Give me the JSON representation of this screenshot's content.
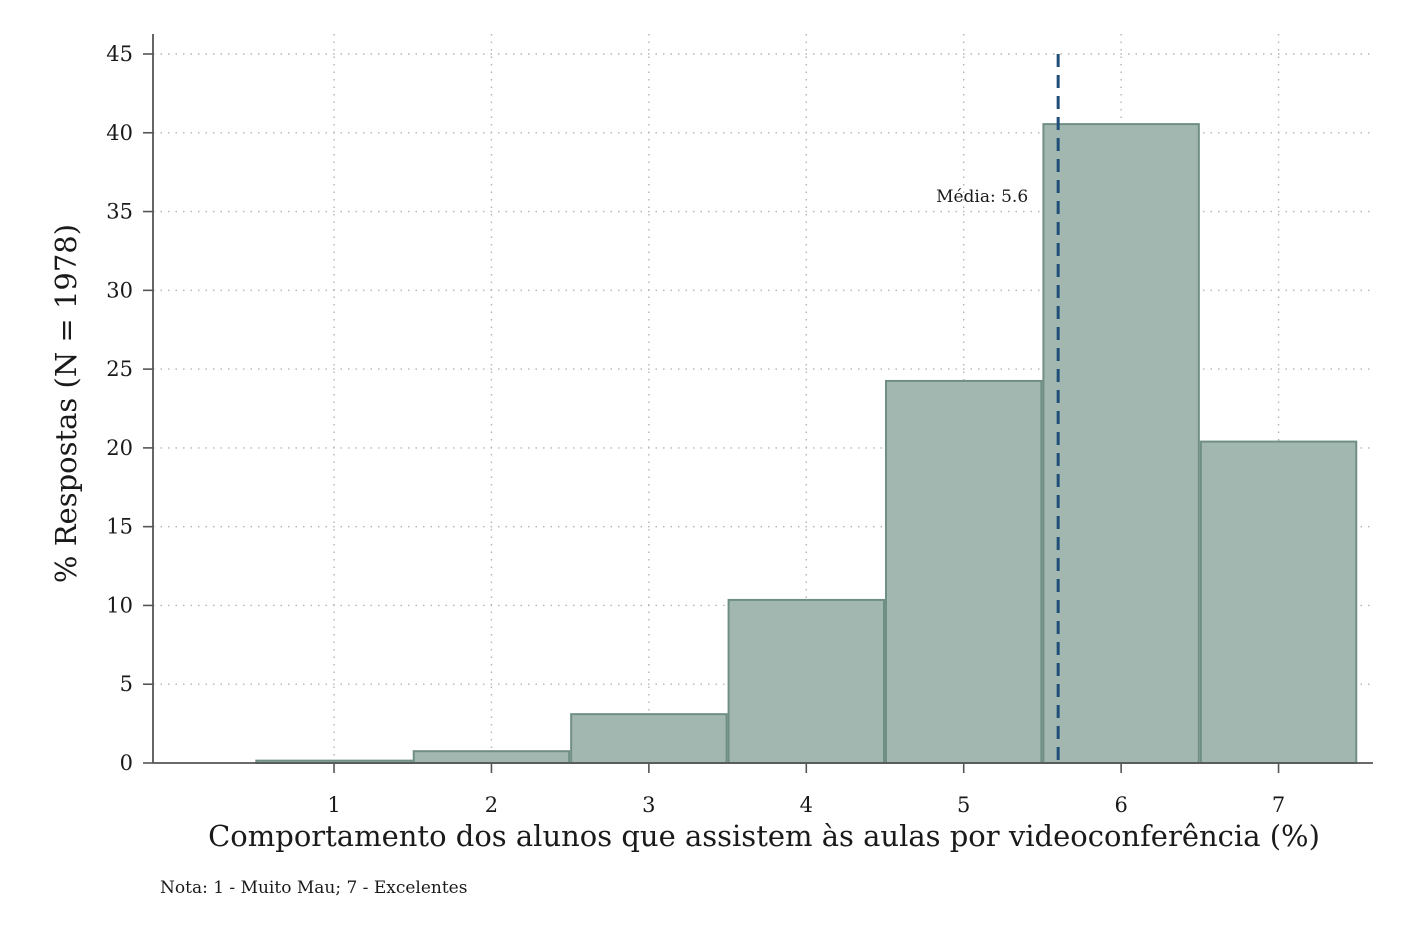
{
  "chart_data": {
    "type": "bar",
    "xlabel": "Comportamento dos alunos que assistem às aulas por videoconferência (%)",
    "ylabel": "% Respostas (N = 1978)",
    "categories": [
      "1",
      "2",
      "3",
      "4",
      "5",
      "6",
      "7"
    ],
    "x": [
      1,
      2,
      3,
      4,
      5,
      6,
      7
    ],
    "values": [
      0.15,
      0.75,
      3.1,
      10.35,
      24.25,
      40.55,
      20.4
    ],
    "xlim": [
      -0.15,
      7.6
    ],
    "ylim": [
      0,
      45
    ],
    "yticks": [
      0,
      5,
      10,
      15,
      20,
      25,
      30,
      35,
      40,
      45
    ],
    "grid": true,
    "mean_line": {
      "value": 5.6,
      "label": "Média: 5.6",
      "label_y": 36,
      "color": "#1f4e79"
    },
    "note": "Nota: 1 - Muito Mau; 7 - Excelentes",
    "colors": {
      "bar_fill": "#a2b7b0",
      "bar_stroke": "#6f8f84",
      "axis": "#555555",
      "grid": "#b5b5b5"
    }
  }
}
